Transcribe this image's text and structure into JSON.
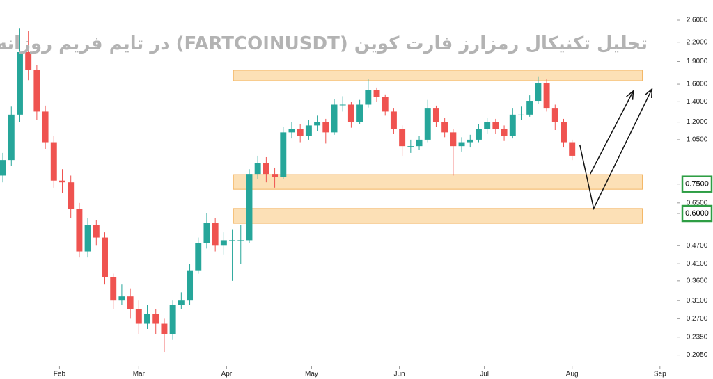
{
  "chart_data": {
    "type": "candlestick",
    "title": "تحلیل تکنیکال رمزارز فارت کوین (FARTCOINUSDT) در تایم فریم روزانه",
    "log_scale": true,
    "grid": false,
    "up_color": "#26a69a",
    "down_color": "#ef5350",
    "xlim": [
      0,
      236
    ],
    "ylim": [
      0.19,
      3.03
    ],
    "xticks": [
      {
        "value": 21,
        "label": "Feb"
      },
      {
        "value": 49,
        "label": "Mar"
      },
      {
        "value": 80,
        "label": "Apr"
      },
      {
        "value": 110,
        "label": "May"
      },
      {
        "value": 141,
        "label": "Jun"
      },
      {
        "value": 171,
        "label": "Jul"
      },
      {
        "value": 202,
        "label": "Aug"
      },
      {
        "value": 233,
        "label": "Sep"
      }
    ],
    "yticks": [
      {
        "value": 2.6,
        "label": "2.6000"
      },
      {
        "value": 2.2,
        "label": "2.2000"
      },
      {
        "value": 1.9,
        "label": "1.9000"
      },
      {
        "value": 1.6,
        "label": "1.6000"
      },
      {
        "value": 1.4,
        "label": "1.4000"
      },
      {
        "value": 1.2,
        "label": "1.2000"
      },
      {
        "value": 1.05,
        "label": "1.0500"
      },
      {
        "value": 0.75,
        "label": "0.7500",
        "highlight": "#2e9e44"
      },
      {
        "value": 0.65,
        "label": "0.6500"
      },
      {
        "value": 0.6,
        "label": "0.6000",
        "highlight": "#2e9e44"
      },
      {
        "value": 0.47,
        "label": "0.4700"
      },
      {
        "value": 0.41,
        "label": "0.4100"
      },
      {
        "value": 0.36,
        "label": "0.3600"
      },
      {
        "value": 0.31,
        "label": "0.3100"
      },
      {
        "value": 0.27,
        "label": "0.2700"
      },
      {
        "value": 0.235,
        "label": "0.2350"
      },
      {
        "value": 0.205,
        "label": "0.2050"
      }
    ],
    "candles": {
      "x": [
        1,
        4,
        7,
        10,
        13,
        16,
        19,
        22,
        25,
        28,
        31,
        34,
        37,
        40,
        43,
        46,
        49,
        52,
        55,
        58,
        61,
        64,
        67,
        70,
        73,
        76,
        79,
        82,
        85,
        88,
        91,
        94,
        97,
        100,
        103,
        106,
        109,
        112,
        115,
        118,
        121,
        124,
        127,
        130,
        133,
        136,
        139,
        142,
        145,
        148,
        151,
        154,
        157,
        160,
        163,
        166,
        169,
        172,
        175,
        178,
        181,
        184,
        187,
        190,
        193,
        196,
        199,
        202
      ],
      "open": [
        0.8,
        0.9,
        1.27,
        2.04,
        1.78,
        1.3,
        1.03,
        0.77,
        0.76,
        0.62,
        0.45,
        0.55,
        0.5,
        0.37,
        0.31,
        0.32,
        0.29,
        0.26,
        0.28,
        0.26,
        0.24,
        0.3,
        0.31,
        0.39,
        0.48,
        0.56,
        0.47,
        0.49,
        0.49,
        0.49,
        0.81,
        0.88,
        0.81,
        0.79,
        1.11,
        1.14,
        1.08,
        1.17,
        1.2,
        1.11,
        1.37,
        1.37,
        1.2,
        1.37,
        1.53,
        1.45,
        1.3,
        1.14,
        1.0,
        1.0,
        1.05,
        1.33,
        1.2,
        1.11,
        1.0,
        1.03,
        1.05,
        1.14,
        1.2,
        1.14,
        1.08,
        1.27,
        1.27,
        1.41,
        1.61,
        1.33,
        1.2,
        1.03
      ],
      "high": [
        0.95,
        1.35,
        2.45,
        2.4,
        1.85,
        1.36,
        1.08,
        0.84,
        0.8,
        0.65,
        0.58,
        0.57,
        0.52,
        0.38,
        0.35,
        0.34,
        0.31,
        0.3,
        0.29,
        0.27,
        0.31,
        0.33,
        0.41,
        0.5,
        0.6,
        0.58,
        0.52,
        0.53,
        0.55,
        0.84,
        0.93,
        0.92,
        0.85,
        1.16,
        1.2,
        1.18,
        1.22,
        1.26,
        1.23,
        1.43,
        1.46,
        1.4,
        1.42,
        1.66,
        1.56,
        1.48,
        1.33,
        1.17,
        1.05,
        1.08,
        1.42,
        1.36,
        1.24,
        1.14,
        1.07,
        1.09,
        1.18,
        1.24,
        1.23,
        1.17,
        1.33,
        1.35,
        1.47,
        1.69,
        1.66,
        1.37,
        1.23,
        1.05
      ],
      "low": [
        0.76,
        0.86,
        1.2,
        1.65,
        1.22,
        0.98,
        0.73,
        0.7,
        0.58,
        0.43,
        0.43,
        0.47,
        0.35,
        0.29,
        0.3,
        0.27,
        0.24,
        0.25,
        0.24,
        0.21,
        0.23,
        0.29,
        0.3,
        0.38,
        0.46,
        0.45,
        0.44,
        0.36,
        0.41,
        0.48,
        0.78,
        0.76,
        0.73,
        0.78,
        1.06,
        1.03,
        1.05,
        1.12,
        1.02,
        1.09,
        1.3,
        1.15,
        1.18,
        1.34,
        1.4,
        1.26,
        1.1,
        0.93,
        0.95,
        0.97,
        1.03,
        1.16,
        1.07,
        0.8,
        0.96,
        0.99,
        1.03,
        1.1,
        1.1,
        1.04,
        1.06,
        1.22,
        1.25,
        1.38,
        1.3,
        1.13,
        0.99,
        0.9
      ],
      "close": [
        0.9,
        1.27,
        2.04,
        1.78,
        1.3,
        1.03,
        0.77,
        0.76,
        0.62,
        0.45,
        0.55,
        0.5,
        0.37,
        0.31,
        0.32,
        0.29,
        0.26,
        0.28,
        0.26,
        0.24,
        0.3,
        0.31,
        0.39,
        0.48,
        0.56,
        0.47,
        0.49,
        0.49,
        0.49,
        0.81,
        0.88,
        0.81,
        0.79,
        1.11,
        1.14,
        1.08,
        1.17,
        1.2,
        1.11,
        1.37,
        1.37,
        1.2,
        1.37,
        1.53,
        1.45,
        1.3,
        1.14,
        1.0,
        1.0,
        1.05,
        1.33,
        1.2,
        1.11,
        1.0,
        1.03,
        1.05,
        1.14,
        1.2,
        1.14,
        1.08,
        1.27,
        1.27,
        1.41,
        1.61,
        1.33,
        1.2,
        1.03,
        0.93
      ]
    },
    "zones": [
      {
        "x": [
          82.4,
          226.8
        ],
        "y": [
          1.643,
          1.779
        ],
        "color": "#fbd08f"
      },
      {
        "x": [
          82.4,
          226.8
        ],
        "y": [
          0.721,
          0.806
        ],
        "color": "#fbd08f"
      },
      {
        "x": [
          82.4,
          226.8
        ],
        "y": [
          0.557,
          0.623
        ],
        "color": "#fbd08f"
      }
    ],
    "arrows": [
      {
        "x": [
          204.7,
          209.6,
          230.2
        ],
        "y": [
          1.011,
          0.623,
          1.543
        ],
        "color": "#111111"
      },
      {
        "x": [
          208.4,
          223.6
        ],
        "y": [
          0.81,
          1.52
        ],
        "color": "#111111"
      }
    ]
  }
}
